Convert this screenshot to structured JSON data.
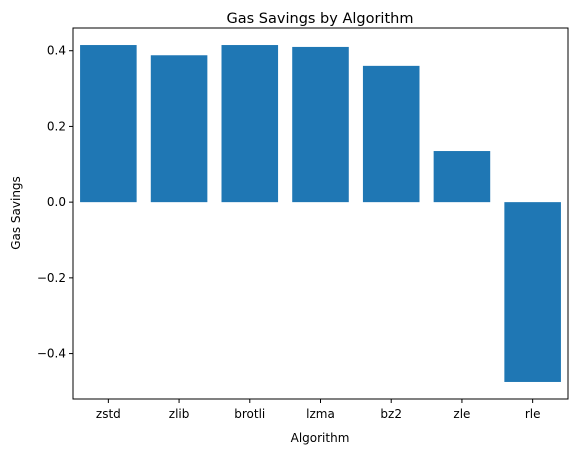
{
  "chart_data": {
    "type": "bar",
    "title": "Gas Savings by Algorithm",
    "xlabel": "Algorithm",
    "ylabel": "Gas Savings",
    "categories": [
      "zstd",
      "zlib",
      "brotli",
      "lzma",
      "bz2",
      "zle",
      "rle"
    ],
    "values": [
      0.415,
      0.388,
      0.415,
      0.41,
      0.36,
      0.135,
      -0.475
    ],
    "ylim": [
      -0.52,
      0.46
    ],
    "yticks": [
      {
        "value": -0.4,
        "label": "−0.4"
      },
      {
        "value": -0.2,
        "label": "−0.2"
      },
      {
        "value": 0.0,
        "label": "0.0"
      },
      {
        "value": 0.2,
        "label": "0.2"
      },
      {
        "value": 0.4,
        "label": "0.4"
      }
    ],
    "bar_color": "#1f77b4",
    "grid": false,
    "legend": "none"
  }
}
